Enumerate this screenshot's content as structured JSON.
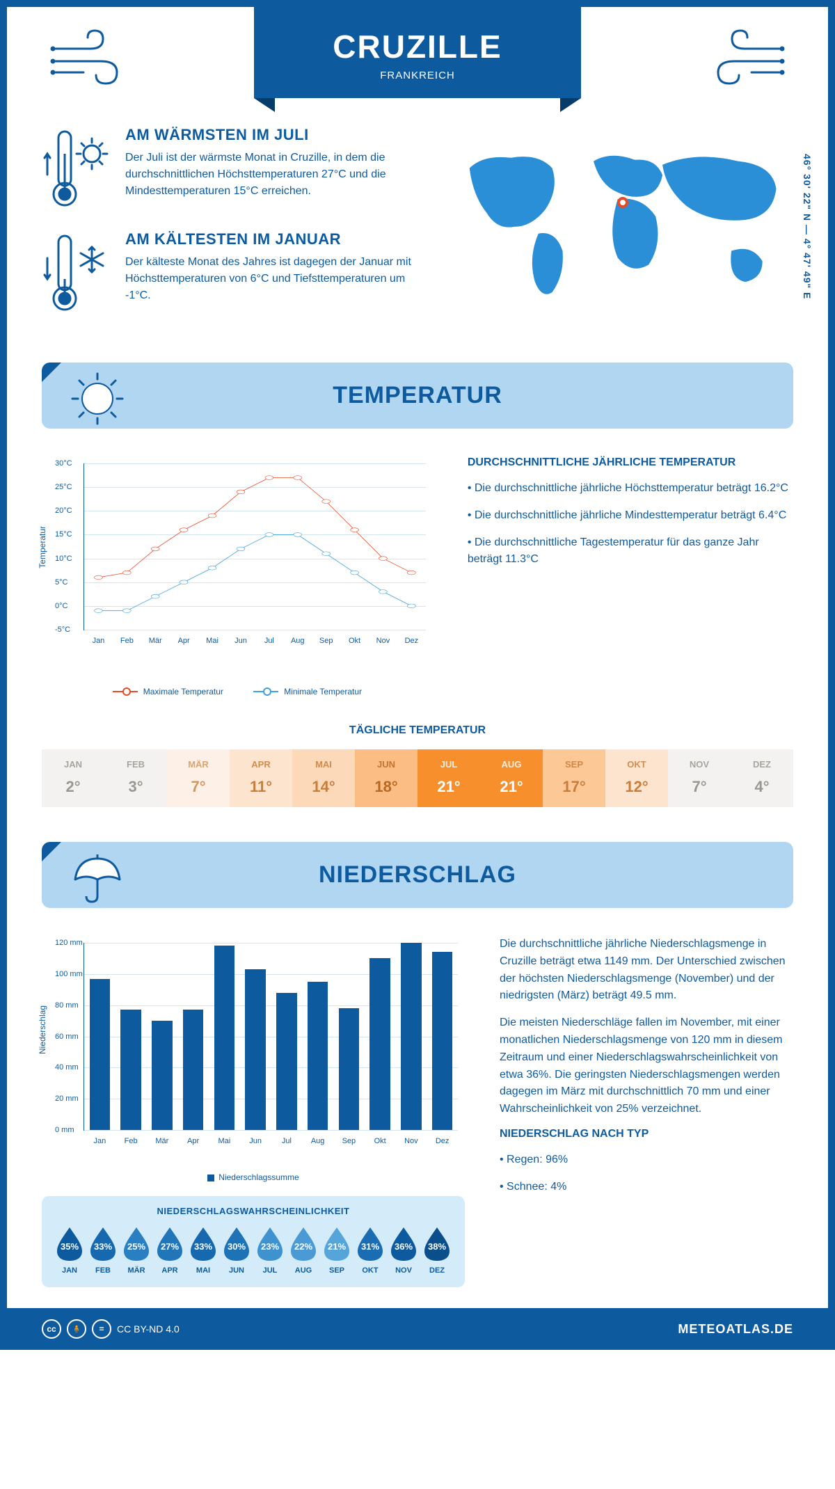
{
  "header": {
    "city": "CRUZILLE",
    "country": "FRANKREICH"
  },
  "coords": "46° 30' 22\" N — 4° 47' 49\" E",
  "facts": {
    "warm": {
      "title": "AM WÄRMSTEN IM JULI",
      "text": "Der Juli ist der wärmste Monat in Cruzille, in dem die durchschnittlichen Höchsttemperaturen 27°C und die Mindesttemperaturen 15°C erreichen."
    },
    "cold": {
      "title": "AM KÄLTESTEN IM JANUAR",
      "text": "Der kälteste Monat des Jahres ist dagegen der Januar mit Höchsttemperaturen von 6°C und Tiefsttemperaturen um -1°C."
    }
  },
  "sections": {
    "temp": "TEMPERATUR",
    "precip": "NIEDERSCHLAG"
  },
  "temp_chart": {
    "type": "line",
    "months": [
      "Jan",
      "Feb",
      "Mär",
      "Apr",
      "Mai",
      "Jun",
      "Jul",
      "Aug",
      "Sep",
      "Okt",
      "Nov",
      "Dez"
    ],
    "y_label": "Temperatur",
    "y_ticks": [
      "-5°C",
      "0°C",
      "5°C",
      "10°C",
      "15°C",
      "20°C",
      "25°C",
      "30°C"
    ],
    "ylim": [
      -5,
      30
    ],
    "max_series": {
      "label": "Maximale Temperatur",
      "color": "#e64b26",
      "values": [
        6,
        7,
        12,
        16,
        19,
        24,
        27,
        27,
        22,
        16,
        10,
        7
      ]
    },
    "min_series": {
      "label": "Minimale Temperatur",
      "color": "#3da0e0",
      "values": [
        -1,
        -1,
        2,
        5,
        8,
        12,
        15,
        15,
        11,
        7,
        3,
        0
      ]
    },
    "marker_fill": "#ffffff",
    "grid_color": "#d4e5f2",
    "line_width": 2
  },
  "temp_text": {
    "title": "DURCHSCHNITTLICHE JÄHRLICHE TEMPERATUR",
    "b1": "• Die durchschnittliche jährliche Höchsttemperatur beträgt 16.2°C",
    "b2": "• Die durchschnittliche jährliche Mindesttemperatur beträgt 6.4°C",
    "b3": "• Die durchschnittliche Tagestemperatur für das ganze Jahr beträgt 11.3°C"
  },
  "daily_temp": {
    "title": "TÄGLICHE TEMPERATUR",
    "months": [
      "JAN",
      "FEB",
      "MÄR",
      "APR",
      "MAI",
      "JUN",
      "JUL",
      "AUG",
      "SEP",
      "OKT",
      "NOV",
      "DEZ"
    ],
    "values": [
      "2°",
      "3°",
      "7°",
      "11°",
      "14°",
      "18°",
      "21°",
      "21°",
      "17°",
      "12°",
      "7°",
      "4°"
    ],
    "bg_colors": [
      "#f4f2f0",
      "#f4f2f0",
      "#fdf0e6",
      "#fde4cf",
      "#fcd9b8",
      "#fbbd83",
      "#f78f2c",
      "#f78f2c",
      "#fcc896",
      "#fde4cf",
      "#f4f2f0",
      "#f4f2f0"
    ],
    "text_colors": [
      "#9a9690",
      "#9a9690",
      "#d19760",
      "#c77e3b",
      "#c77e3b",
      "#b86820",
      "#ffffff",
      "#ffffff",
      "#c77e3b",
      "#c77e3b",
      "#9a9690",
      "#9a9690"
    ]
  },
  "precip_chart": {
    "type": "bar",
    "y_label": "Niederschlag",
    "months": [
      "Jan",
      "Feb",
      "Mär",
      "Apr",
      "Mai",
      "Jun",
      "Jul",
      "Aug",
      "Sep",
      "Okt",
      "Nov",
      "Dez"
    ],
    "values": [
      97,
      77,
      70,
      77,
      118,
      103,
      88,
      95,
      78,
      110,
      120,
      114
    ],
    "y_ticks": [
      "0 mm",
      "20 mm",
      "40 mm",
      "60 mm",
      "80 mm",
      "100 mm",
      "120 mm"
    ],
    "ylim": [
      0,
      120
    ],
    "bar_color": "#0d5a9e",
    "legend": "Niederschlagssumme",
    "bar_width_pct": 5.5
  },
  "precip_text": {
    "p1": "Die durchschnittliche jährliche Niederschlagsmenge in Cruzille beträgt etwa 1149 mm. Der Unterschied zwischen der höchsten Niederschlagsmenge (November) und der niedrigsten (März) beträgt 49.5 mm.",
    "p2": "Die meisten Niederschläge fallen im November, mit einer monatlichen Niederschlagsmenge von 120 mm in diesem Zeitraum und einer Niederschlagswahrscheinlichkeit von etwa 36%. Die geringsten Niederschlagsmengen werden dagegen im März mit durchschnittlich 70 mm und einer Wahrscheinlichkeit von 25% verzeichnet.",
    "type_title": "NIEDERSCHLAG NACH TYP",
    "type1": "• Regen: 96%",
    "type2": "• Schnee: 4%"
  },
  "prob": {
    "title": "NIEDERSCHLAGSWAHRSCHEINLICHKEIT",
    "months": [
      "JAN",
      "FEB",
      "MÄR",
      "APR",
      "MAI",
      "JUN",
      "JUL",
      "AUG",
      "SEP",
      "OKT",
      "NOV",
      "DEZ"
    ],
    "pct": [
      "35%",
      "33%",
      "25%",
      "27%",
      "33%",
      "30%",
      "23%",
      "22%",
      "21%",
      "31%",
      "36%",
      "38%"
    ],
    "colors": [
      "#0d5a9e",
      "#1669af",
      "#2a7fc2",
      "#2176ba",
      "#1669af",
      "#1e72b6",
      "#3e92cf",
      "#4a9bd5",
      "#55a4da",
      "#1a6db2",
      "#0d5a9e",
      "#0a4f8c"
    ]
  },
  "footer": {
    "license": "CC BY-ND 4.0",
    "site": "METEOATLAS.DE"
  },
  "colors": {
    "primary": "#0d5a9e",
    "light_blue": "#b0d6f2",
    "map_blue": "#2a8fd6"
  },
  "map": {
    "pin_left_pct": 49,
    "pin_top_pct": 34
  }
}
